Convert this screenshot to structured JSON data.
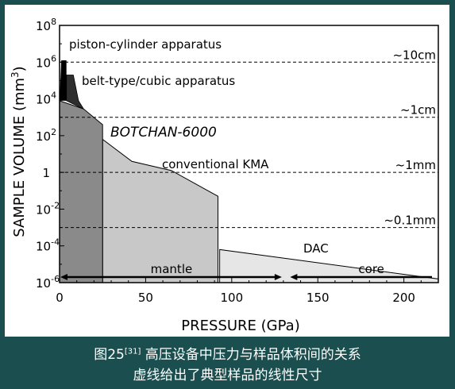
{
  "chart_data": {
    "type": "area",
    "xlabel": "PRESSURE (GPa)",
    "ylabel": "SAMPLE VOLUME (mm",
    "ylabel_sup": "3",
    "ylabel_close": ")",
    "xlim": [
      0,
      220
    ],
    "ylim_log10": [
      -6,
      8
    ],
    "yscale": "log",
    "x_ticks": [
      {
        "value": 0,
        "label": "0"
      },
      {
        "value": 50,
        "label": "50"
      },
      {
        "value": 100,
        "label": "100"
      },
      {
        "value": 150,
        "label": "150"
      },
      {
        "value": 200,
        "label": "200"
      }
    ],
    "y_ticks": [
      {
        "exp": 8,
        "base": "10",
        "sup": "8"
      },
      {
        "exp": 6,
        "base": "10",
        "sup": "6"
      },
      {
        "exp": 4,
        "base": "10",
        "sup": "4"
      },
      {
        "exp": 2,
        "base": "10",
        "sup": "2"
      },
      {
        "exp": 0,
        "base": "1",
        "sup": ""
      },
      {
        "exp": -2,
        "base": "10",
        "sup": "-2"
      },
      {
        "exp": -4,
        "base": "10",
        "sup": "-4"
      },
      {
        "exp": -6,
        "base": "10",
        "sup": "-6"
      }
    ],
    "series": [
      {
        "name": "DAC",
        "color": "#e6e6e6",
        "points": [
          [
            93,
            -4.2
          ],
          [
            220,
            -5.8
          ]
        ]
      },
      {
        "name": "conventional KMA",
        "color": "#c8c8c8",
        "points": [
          [
            25,
            1.8
          ],
          [
            42,
            0.6
          ],
          [
            65,
            0.1
          ],
          [
            92,
            -1.3
          ]
        ]
      },
      {
        "name": "BOTCHAN-6000",
        "color": "#8a8a8a",
        "points": [
          [
            0,
            3.9
          ],
          [
            14,
            3.45
          ],
          [
            25,
            2.6
          ]
        ]
      },
      {
        "name": "belt-type/cubic apparatus",
        "color": "#2e2e2e",
        "points": [
          [
            4,
            5.3
          ],
          [
            8,
            5.3
          ],
          [
            11,
            3.9
          ],
          [
            14,
            3.45
          ]
        ]
      },
      {
        "name": "piston-cylinder apparatus",
        "color": "#000000",
        "points": [
          [
            1,
            6.1
          ],
          [
            4,
            6.1
          ],
          [
            4,
            3.9
          ],
          [
            0,
            3.9
          ]
        ]
      }
    ],
    "reference_lines": [
      {
        "exp": 6,
        "label": "~10cm"
      },
      {
        "exp": 3,
        "label": "~1cm"
      },
      {
        "exp": 0,
        "label": "~1mm"
      },
      {
        "exp": -3,
        "label": "~0.1mm"
      }
    ],
    "regions": [
      {
        "label": "mantle",
        "from": 0,
        "to": 130
      },
      {
        "label": "core",
        "from": 133,
        "to": 220
      }
    ]
  },
  "caption": {
    "line1_prefix": "图25",
    "line1_ref": "[31]",
    "line1_text": "  高压设备中压力与样品体积间的关系",
    "line2": "虚线给出了典型样品的线性尺寸"
  }
}
